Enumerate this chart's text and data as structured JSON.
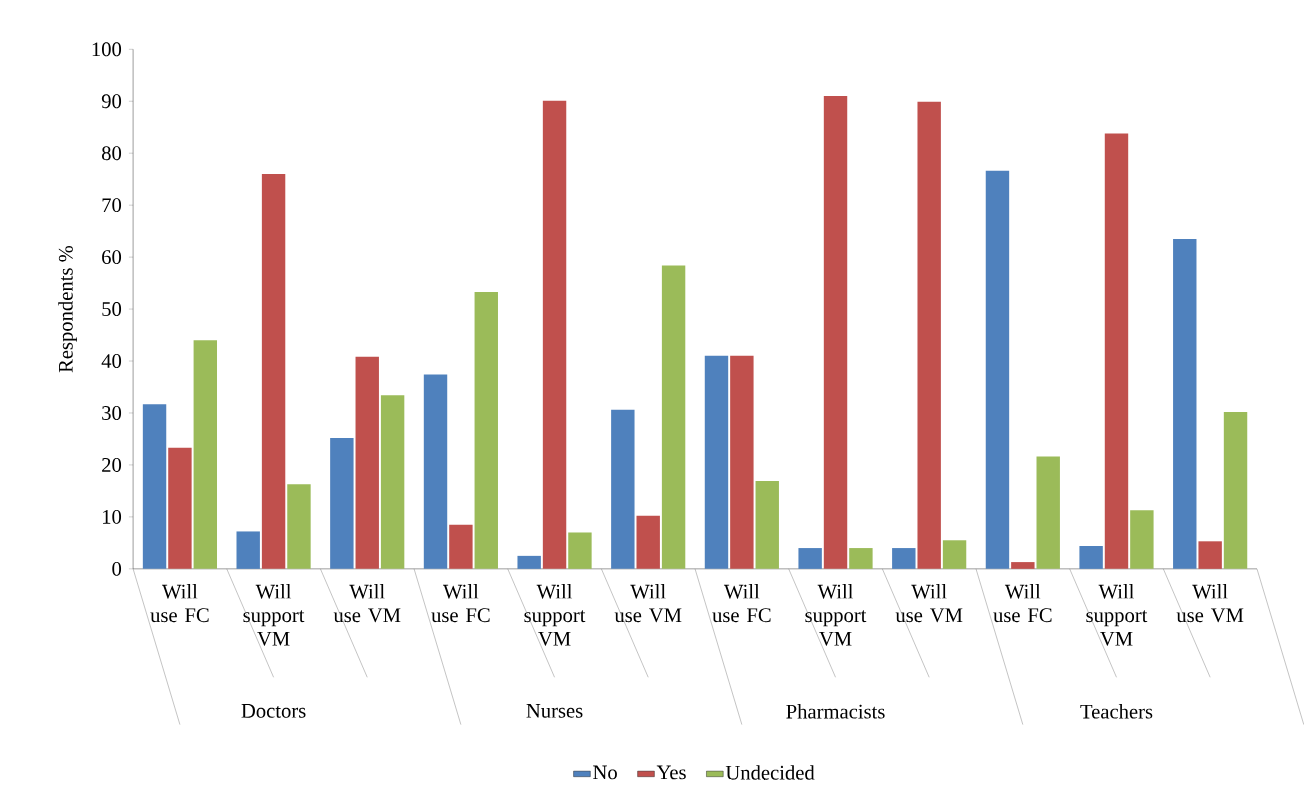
{
  "chart_data": {
    "type": "bar",
    "ylabel": "Respondents %",
    "categories": [
      "Will use FC",
      "Will support VM",
      "Will use VM",
      "Will use FC",
      "Will support VM",
      "Will use VM",
      "Will use FC",
      "Will support VM",
      "Will use VM",
      "Will use FC",
      "Will support VM",
      "Will use VM"
    ],
    "annotations": [
      "Doctors",
      "Nurses",
      "Pharmacists",
      "Teachers"
    ],
    "series": [
      {
        "name": "No",
        "color": "#4f81bd",
        "values": [
          31.7,
          7.2,
          25.2,
          37.4,
          2.5,
          30.6,
          41.0,
          4.0,
          4.0,
          76.6,
          4.4,
          63.5
        ]
      },
      {
        "name": "Yes",
        "color": "#c0504d",
        "values": [
          23.3,
          76.0,
          40.8,
          8.5,
          90.1,
          10.2,
          41.0,
          91.0,
          89.9,
          1.3,
          83.8,
          5.3
        ]
      },
      {
        "name": "Undecided",
        "color": "#9bbb59",
        "values": [
          44.0,
          16.3,
          33.4,
          53.3,
          7.0,
          58.4,
          16.9,
          4.0,
          5.5,
          21.6,
          11.3,
          30.2
        ]
      }
    ],
    "ylim": [
      0,
      100
    ],
    "yticks": [
      0,
      10,
      20,
      30,
      40,
      50,
      60,
      70,
      80,
      90,
      100
    ],
    "grid": false,
    "legend": "bottom"
  }
}
